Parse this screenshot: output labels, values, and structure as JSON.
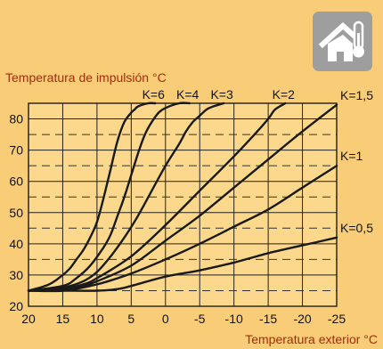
{
  "colors": {
    "background": "#f9cd77",
    "plot_background": "#fbd88b",
    "axis_title": "#a72a0b",
    "curve": "#1a1a1a",
    "icon_bg": "#9e9e9e"
  },
  "icon": {
    "name": "house-thermometer-icon"
  },
  "chart_data": {
    "type": "line",
    "title": "",
    "xlabel": "Temperatura exterior °C",
    "ylabel": "Temperatura de impulsión °C",
    "xlim": [
      20,
      -25
    ],
    "ylim": [
      20,
      85
    ],
    "x_reversed": true,
    "x_ticks": [
      20,
      15,
      10,
      5,
      0,
      -5,
      -10,
      -15,
      -20,
      -25
    ],
    "x_tick_labels": [
      "20",
      "15",
      "10",
      "5",
      "0",
      "-5",
      "-10",
      "-15",
      "-20",
      "-25"
    ],
    "y_ticks": [
      20,
      30,
      40,
      50,
      60,
      70,
      80
    ],
    "y_tick_labels": [
      "20",
      "30",
      "40",
      "50",
      "60",
      "70",
      "80"
    ],
    "grid": "vertical solid every 5 °C, horizontal solid every 10 °C, dashed at intermediate 5 °C",
    "series": [
      {
        "name": "K=6",
        "label_pos": "end-top",
        "x": [
          20,
          17,
          15,
          14,
          13,
          12,
          11,
          10,
          9,
          8,
          7,
          6,
          5,
          4.5,
          4,
          2.5,
          1.5
        ],
        "y": [
          25,
          27,
          30,
          32,
          35,
          38,
          42,
          47,
          55,
          64,
          73,
          79,
          82,
          83,
          84,
          85,
          85
        ]
      },
      {
        "name": "K=4",
        "label_pos": "end-top",
        "x": [
          20,
          15,
          13,
          11,
          9,
          8,
          7,
          6,
          5,
          4,
          3,
          2,
          1,
          0,
          -2,
          -3.5
        ],
        "y": [
          25,
          26.5,
          29,
          33,
          39,
          43,
          49,
          55,
          62,
          69,
          75,
          79,
          82,
          83.5,
          85,
          85
        ]
      },
      {
        "name": "K=3",
        "label_pos": "end-top",
        "x": [
          20,
          15,
          12,
          10,
          8,
          6,
          4,
          2,
          0,
          -2,
          -3,
          -4,
          -5,
          -6,
          -7,
          -8.5
        ],
        "y": [
          25,
          26,
          28,
          31,
          36,
          42,
          49,
          57,
          65,
          72,
          76,
          79,
          81,
          83,
          84,
          85
        ]
      },
      {
        "name": "K=2",
        "label_pos": "end-top",
        "x": [
          20,
          15,
          12,
          10,
          5,
          0,
          -5,
          -10,
          -13,
          -15,
          -16,
          -17.5
        ],
        "y": [
          25,
          25.6,
          27,
          29,
          36,
          46,
          57,
          68,
          75,
          80,
          83,
          85
        ]
      },
      {
        "name": "K=1,5",
        "label_pos": "end-right",
        "x": [
          20,
          15,
          12,
          10,
          5,
          0,
          -5,
          -10,
          -15,
          -20,
          -25
        ],
        "y": [
          25,
          25.5,
          26.5,
          28,
          33,
          41,
          49,
          58,
          67,
          76,
          84.5
        ]
      },
      {
        "name": "K=1",
        "label_pos": "end-right",
        "x": [
          20,
          15,
          10,
          5,
          0,
          -5,
          -10,
          -15,
          -20,
          -25
        ],
        "y": [
          25,
          25,
          27,
          30.5,
          35,
          40,
          45.5,
          51,
          58,
          65
        ]
      },
      {
        "name": "K=0,5",
        "label_pos": "end-right",
        "x": [
          20,
          15,
          10,
          7,
          5,
          0,
          -5,
          -10,
          -15,
          -20,
          -25
        ],
        "y": [
          25,
          25,
          25,
          25.5,
          26.5,
          29.5,
          31.5,
          34,
          37,
          39.5,
          42
        ]
      }
    ]
  }
}
